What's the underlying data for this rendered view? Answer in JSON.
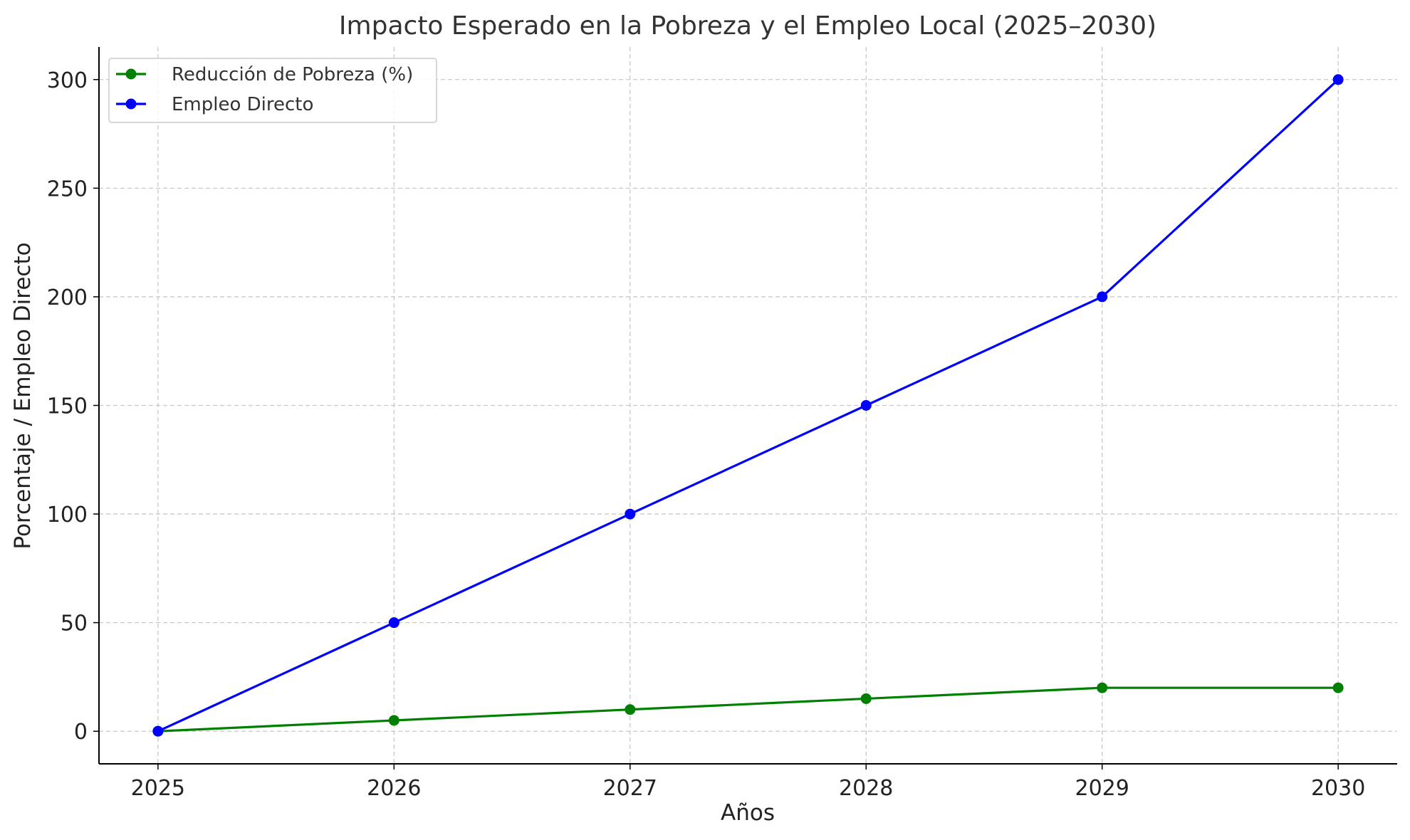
{
  "chart_data": {
    "type": "line",
    "title": "Impacto Esperado en la Pobreza y el Empleo Local (2025–2030)",
    "xlabel": "Años",
    "ylabel": "Porcentaje / Empleo Directo",
    "x": [
      2025,
      2026,
      2027,
      2028,
      2029,
      2030
    ],
    "xlim": [
      2024.75,
      2030.25
    ],
    "ylim": [
      -15,
      315
    ],
    "yticks": [
      0,
      50,
      100,
      150,
      200,
      250,
      300
    ],
    "grid": true,
    "legend_position": "top-left",
    "series": [
      {
        "name": "Reducción de Pobreza (%)",
        "color": "#008000",
        "values": [
          0,
          5,
          10,
          15,
          20,
          20
        ]
      },
      {
        "name": "Empleo Directo",
        "color": "#0000ff",
        "values": [
          0,
          50,
          100,
          150,
          200,
          300
        ]
      }
    ]
  }
}
